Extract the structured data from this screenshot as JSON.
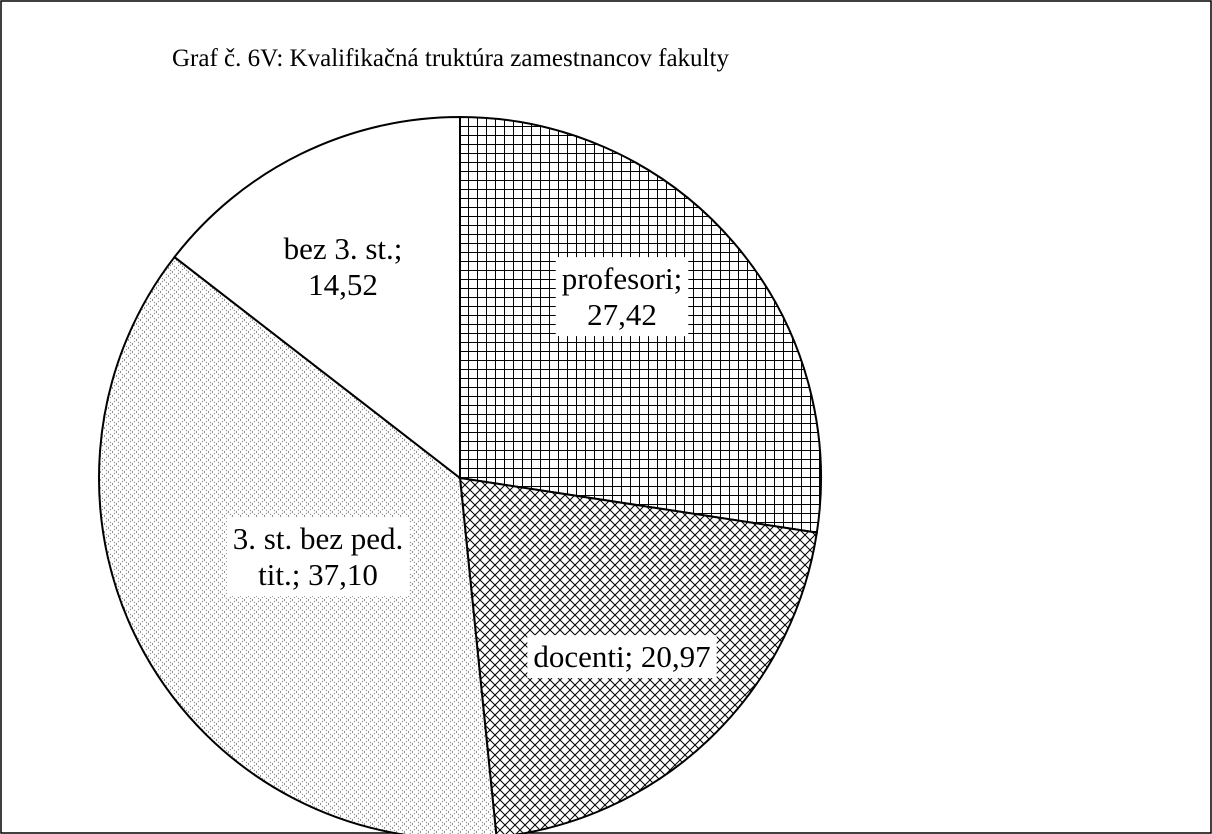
{
  "chart_data": {
    "type": "pie",
    "title": "Graf č. 6V: Kvalifikačná truktúra zamestnancov fakulty",
    "values": [
      27.42,
      20.97,
      37.1,
      14.52
    ],
    "value_labels": [
      [
        "profesori;",
        "27,42"
      ],
      [
        "docenti; 20,97"
      ],
      [
        "3. st. bez ped.",
        "tit.; 37,10"
      ],
      [
        "bez 3. st.;",
        "14,52"
      ]
    ],
    "patterns": [
      "grid",
      "crosshatch",
      "dots",
      "none"
    ]
  }
}
